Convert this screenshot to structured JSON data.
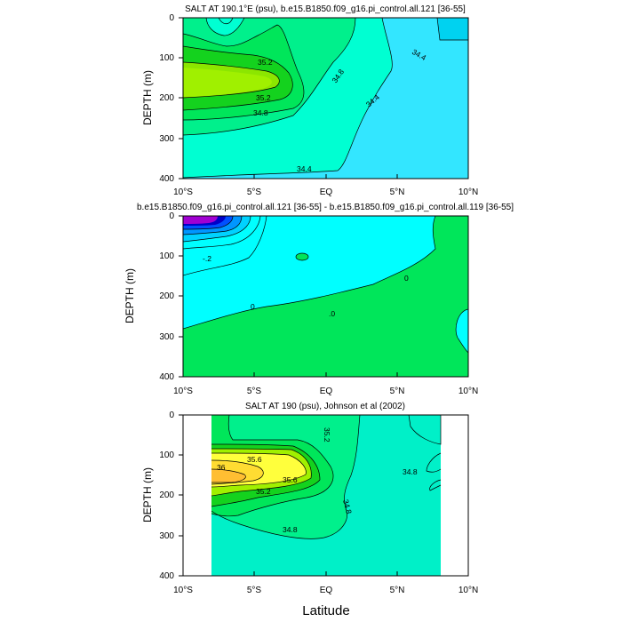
{
  "chart_data": [
    {
      "type": "contour",
      "title": "SALT AT 190.1°E (psu), b.e15.B1850.f09_g16.pi_control.all.121 [36-55]",
      "ylabel": "DEPTH (m)",
      "xlabel": "",
      "x_ticks": [
        "10°S",
        "5°S",
        "EQ",
        "5°N",
        "10°N"
      ],
      "y_ticks": [
        "0",
        "100",
        "200",
        "300",
        "400"
      ],
      "xlim": [
        -10,
        10
      ],
      "ylim": [
        400,
        0
      ],
      "contour_labels": [
        "35.2",
        "35.2",
        "34.8",
        "34.8",
        "34.4",
        "34.4",
        "34.4"
      ],
      "fill_colors": {
        "v34_2": "#00d2f0",
        "v34_4": "#33e6ff",
        "v34_6": "#00ffd2",
        "v34_8": "#00f08c",
        "v35_0": "#00e65a",
        "v35_2": "#14d21e",
        "v35_4": "#8ce600",
        "v35_6": "#a0f000"
      }
    },
    {
      "type": "contour",
      "title": "b.e15.B1850.f09_g16.pi_control.all.121 [36-55] - b.e15.B1850.f09_g16.pi_control.all.119 [36-55]",
      "ylabel": "DEPTH (m)",
      "xlabel": "",
      "x_ticks": [
        "10°S",
        "5°S",
        "EQ",
        "5°N",
        "10°N"
      ],
      "y_ticks": [
        "0",
        "100",
        "200",
        "300",
        "400"
      ],
      "xlim": [
        -10,
        10
      ],
      "ylim": [
        400,
        0
      ],
      "contour_labels": [
        "-.2",
        "0",
        ".0",
        "0"
      ],
      "fill_colors": {
        "pos": "#00e65a",
        "neg_small": "#00ffff",
        "neg1": "#00d2ff",
        "neg2": "#0096ff",
        "neg3": "#0050ff",
        "neg4": "#0000c8",
        "neg5": "#5000e6",
        "neg6": "#a000d2"
      }
    },
    {
      "type": "contour",
      "title": "SALT AT 190 (psu), Johnson et al (2002)",
      "ylabel": "DEPTH (m)",
      "xlabel": "Latitude",
      "x_ticks": [
        "10°S",
        "5°S",
        "EQ",
        "5°N",
        "10°N"
      ],
      "y_ticks": [
        "0",
        "100",
        "200",
        "300",
        "400"
      ],
      "xlim": [
        -10,
        10
      ],
      "ylim": [
        400,
        0
      ],
      "data_extent_lat": [
        -8,
        8
      ],
      "contour_labels": [
        "36",
        "35.6",
        "35.6",
        "35.2",
        "35.2",
        "34.8",
        "34.8",
        "34.8"
      ],
      "fill_colors": {
        "v34_6": "#00f0c8",
        "v34_8": "#00f08c",
        "v35_0": "#00e65a",
        "v35_2": "#14d21e",
        "v35_4": "#a0f000",
        "v35_6": "#ffff3c",
        "v35_8": "#ffdc32",
        "v36_0": "#ffbe32"
      }
    }
  ]
}
